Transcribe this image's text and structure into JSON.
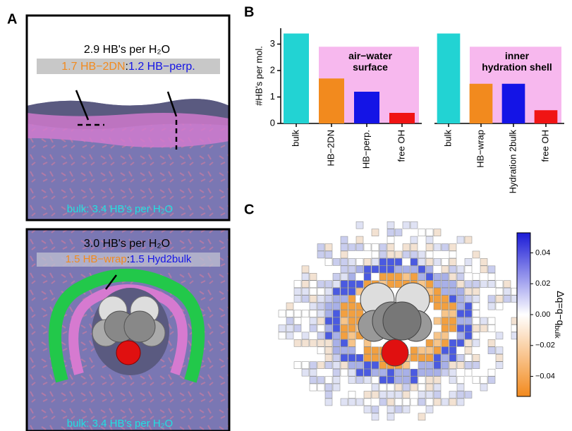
{
  "panel_labels": [
    "A",
    "B",
    "C"
  ],
  "panel_a": {
    "top": {
      "total": "2.9 HB's per H₂O",
      "left": "1.7 HB−2DN",
      "sep": ":",
      "right": "1.2 HB−perp.",
      "bulk": "bulk: 3.4 HB's per H₂O"
    },
    "bottom": {
      "total": "3.0 HB's per H₂O",
      "left": "1.5 HB−wrap",
      "sep": ":",
      "right": "1.5 Hyd2bulk",
      "bulk": "bulk: 3.4 HB's per H₂O"
    }
  },
  "chart_data": [
    {
      "type": "bar",
      "ylabel": "#HB's per mol.",
      "annotation": [
        "air−water",
        "surface"
      ],
      "categories": [
        "bulk",
        "HB−2DN",
        "HB−perp.",
        "free OH"
      ],
      "values": [
        3.4,
        1.7,
        1.2,
        0.4
      ],
      "colors": [
        "#22d3d3",
        "#f28a1e",
        "#1414e6",
        "#f01414"
      ],
      "ylim": [
        0,
        3.6
      ],
      "yticks": [
        0,
        1,
        2,
        3
      ]
    },
    {
      "type": "bar",
      "annotation": [
        "inner",
        "hydration shell"
      ],
      "categories": [
        "bulk",
        "HB−wrap",
        "Hydration 2bulk",
        "free OH"
      ],
      "values": [
        3.4,
        1.5,
        1.5,
        0.5
      ],
      "colors": [
        "#22d3d3",
        "#f28a1e",
        "#1414e6",
        "#f01414"
      ],
      "ylim": [
        0,
        3.6
      ]
    },
    {
      "type": "colorbar",
      "label": "Δq=q−q",
      "label_sub": "bulk",
      "ylim": [
        -0.053,
        0.053
      ],
      "yticks": [
        {
          "value": -0.04,
          "label": "−0.04"
        },
        {
          "value": -0.02,
          "label": "−0.02"
        },
        {
          "value": 0,
          "label": "0.00"
        },
        0.02,
        0.04
      ],
      "colors": [
        "#f28a1e",
        "#ffffff",
        "#1a1ad6"
      ]
    }
  ]
}
